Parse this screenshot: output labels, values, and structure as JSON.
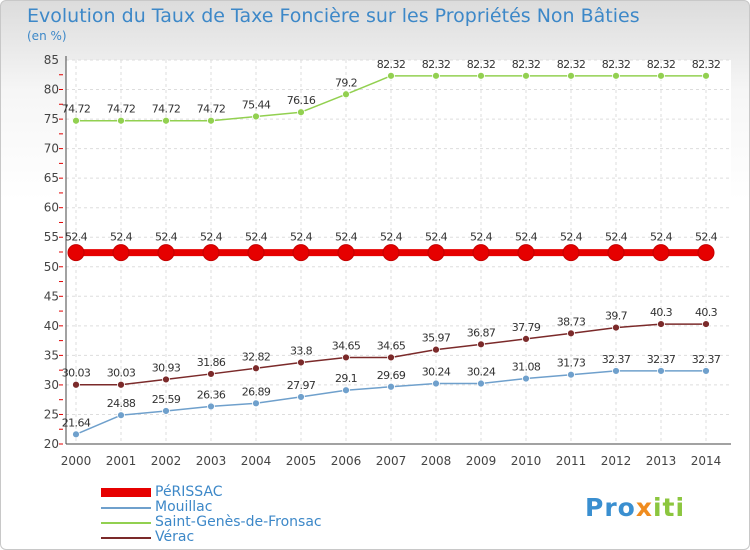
{
  "chart_data": {
    "type": "line",
    "title": "Evolution du Taux de Taxe Foncière sur les Propriétés Non Bâties",
    "unit_label": "(en %)",
    "xlabel": "",
    "ylabel": "",
    "x": [
      "2000",
      "2001",
      "2002",
      "2003",
      "2004",
      "2005",
      "2006",
      "2007",
      "2008",
      "2009",
      "2010",
      "2011",
      "2012",
      "2013",
      "2014"
    ],
    "ylim": [
      20,
      85
    ],
    "yticks": [
      20,
      25,
      30,
      35,
      40,
      45,
      50,
      55,
      60,
      65,
      70,
      75,
      80,
      85
    ],
    "grid": true,
    "series": [
      {
        "name": "PéRISSAC",
        "color": "#e60000",
        "values": [
          52.4,
          52.4,
          52.4,
          52.4,
          52.4,
          52.4,
          52.4,
          52.4,
          52.4,
          52.4,
          52.4,
          52.4,
          52.4,
          52.4,
          52.4
        ],
        "labels": [
          "52.4",
          "52.4",
          "52.4",
          "52.4",
          "52.4",
          "52.4",
          "52.4",
          "52.4",
          "52.4",
          "52.4",
          "52.4",
          "52.4",
          "52.4",
          "52.4",
          "52.4"
        ]
      },
      {
        "name": "Mouillac",
        "color": "#6fa0cc",
        "values": [
          21.64,
          24.88,
          25.59,
          26.36,
          26.89,
          27.97,
          29.1,
          29.69,
          30.24,
          30.24,
          31.08,
          31.73,
          32.37,
          32.37,
          32.37
        ],
        "labels": [
          "21.64",
          "24.88",
          "25.59",
          "26.36",
          "26.89",
          "27.97",
          "29.1",
          "29.69",
          "30.24",
          "30.24",
          "31.08",
          "31.73",
          "32.37",
          "32.37",
          "32.37"
        ]
      },
      {
        "name": "Saint-Genès-de-Fronsac",
        "color": "#92d050",
        "values": [
          74.72,
          74.72,
          74.72,
          74.72,
          75.44,
          76.16,
          79.2,
          82.32,
          82.32,
          82.32,
          82.32,
          82.32,
          82.32,
          82.32,
          82.32
        ],
        "labels": [
          "74.72",
          "74.72",
          "74.72",
          "74.72",
          "75.44",
          "76.16",
          "79.2",
          "82.32",
          "82.32",
          "82.32",
          "82.32",
          "82.32",
          "82.32",
          "82.32",
          "82.32"
        ]
      },
      {
        "name": "Vérac",
        "color": "#7b2a2a",
        "values": [
          30.03,
          30.03,
          30.93,
          31.86,
          32.82,
          33.8,
          34.65,
          34.65,
          35.97,
          36.87,
          37.79,
          38.73,
          39.7,
          40.3,
          40.3
        ],
        "labels": [
          "30.03",
          "30.03",
          "30.93",
          "31.86",
          "32.82",
          "33.8",
          "34.65",
          "34.65",
          "35.97",
          "36.87",
          "37.79",
          "38.73",
          "39.7",
          "40.3",
          "40.3"
        ]
      }
    ]
  },
  "logo": {
    "text_parts": [
      "Pro",
      "x",
      "iti"
    ],
    "colors": [
      "#3a8fd0",
      "#f08c1e",
      "#8cc63f"
    ]
  }
}
